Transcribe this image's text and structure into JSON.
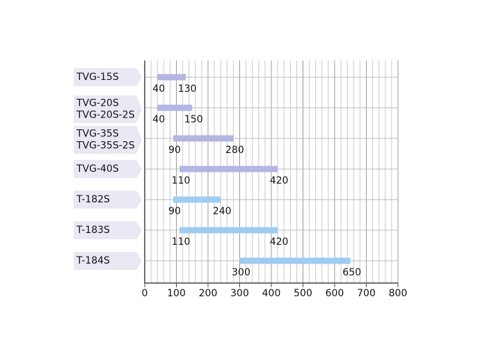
{
  "chart_data": {
    "type": "range-bar",
    "categories": [
      [
        "TVG-15S"
      ],
      [
        "TVG-20S",
        "TVG-20S-2S"
      ],
      [
        "TVG-35S",
        "TVG-35S-2S"
      ],
      [
        "TVG-40S"
      ],
      [
        "T-182S"
      ],
      [
        "T-183S"
      ],
      [
        "T-184S"
      ]
    ],
    "starts": [
      40,
      40,
      90,
      110,
      90,
      110,
      300
    ],
    "ends": [
      130,
      150,
      280,
      420,
      240,
      420,
      650
    ],
    "colors": [
      "#b3b5e2",
      "#b3b5e2",
      "#b3b5e2",
      "#b3b5e2",
      "#9fcdf2",
      "#9fcdf2",
      "#9fcdf2"
    ],
    "xlim": [
      0,
      800
    ],
    "xticks": [
      0,
      100,
      200,
      300,
      400,
      500,
      600,
      700,
      800
    ],
    "grid": true
  }
}
